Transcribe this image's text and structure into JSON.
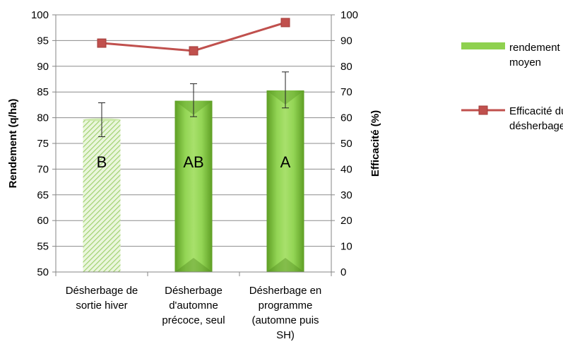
{
  "chart_data": {
    "type": "bar+line",
    "categories": [
      [
        "Désherbage de",
        "sortie hiver"
      ],
      [
        "Désherbage",
        "d'automne",
        "précoce, seul"
      ],
      [
        "Désherbage en",
        "programme",
        "(automne puis",
        "SH)"
      ]
    ],
    "bars": {
      "name": [
        "rendement",
        "moyen"
      ],
      "values": [
        79.6,
        83.3,
        85.3
      ],
      "error_low": [
        76.3,
        80.2,
        81.9
      ],
      "error_high": [
        82.9,
        86.6,
        88.9
      ],
      "labels": [
        "B",
        "AB",
        "A"
      ],
      "color": "#8fd14f"
    },
    "line": {
      "name": [
        "Efficacité du",
        "désherbage"
      ],
      "values": [
        89,
        86,
        97
      ],
      "color": "#c0504d"
    },
    "y_left": {
      "label": "Rendement (q/ha)",
      "min": 50,
      "max": 100,
      "step": 5
    },
    "y_right": {
      "label": "Efficacité (%)",
      "min": 0,
      "max": 100,
      "step": 10
    },
    "grid": true,
    "legend_position": "right"
  }
}
